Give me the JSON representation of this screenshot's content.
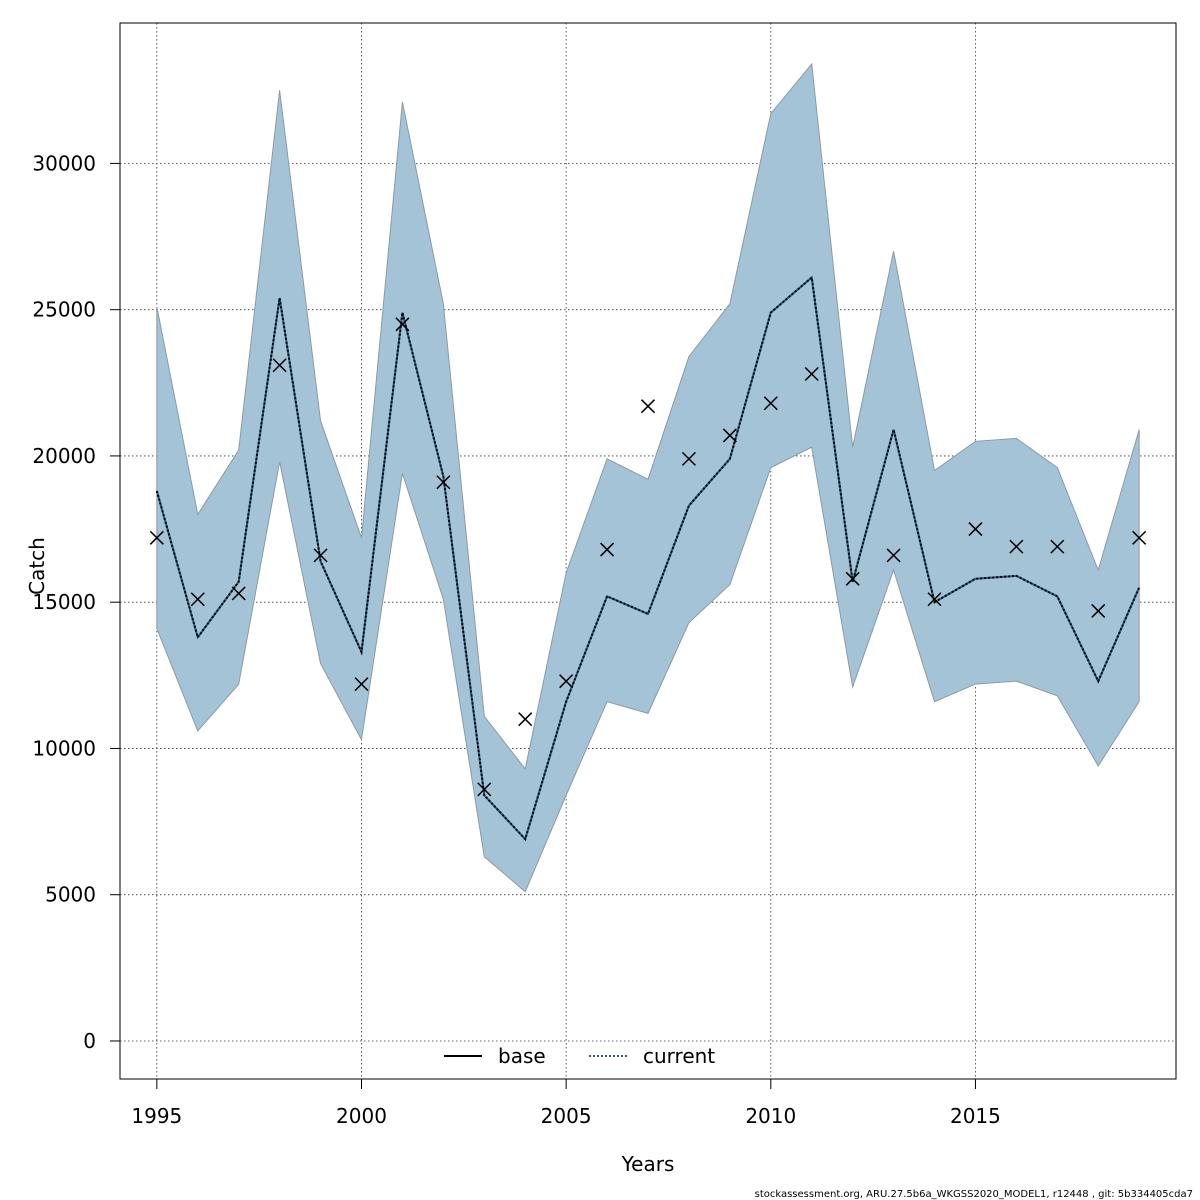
{
  "colors": {
    "band_fill": "#a4c3d6",
    "band_stroke": "#8a9ba6",
    "current_line": "#2a5a7a",
    "grid": "#333333",
    "marker": "#000000",
    "base_line": "#000000"
  },
  "footer": "stockassessment.org, ARU.27.5b6a_WKGSS2020_MODEL1, r12448 , git: 5b334405cda7",
  "chart_data": {
    "type": "line",
    "xlabel": "Years",
    "ylabel": "Catch",
    "xlim": [
      1994.1,
      2019.9
    ],
    "ylim": [
      -1300,
      34800
    ],
    "x_ticks": [
      1995,
      2000,
      2005,
      2010,
      2015
    ],
    "x_tick_labels": [
      "1995",
      "2000",
      "2005",
      "2010",
      "2015"
    ],
    "y_ticks": [
      0,
      5000,
      10000,
      15000,
      20000,
      25000,
      30000
    ],
    "y_tick_labels": [
      "0",
      "5000",
      "10000",
      "15000",
      "20000",
      "25000",
      "30000"
    ],
    "grid": true,
    "legend_position": "bottom",
    "legend": [
      {
        "label": "base",
        "style": "solid"
      },
      {
        "label": "current",
        "style": "dotted"
      }
    ],
    "x": [
      1995,
      1996,
      1997,
      1998,
      1999,
      2000,
      2001,
      2002,
      2003,
      2004,
      2005,
      2006,
      2007,
      2008,
      2009,
      2010,
      2011,
      2012,
      2013,
      2014,
      2015,
      2016,
      2017,
      2018,
      2019
    ],
    "series": [
      {
        "name": "current",
        "values": [
          18800,
          13800,
          15700,
          25400,
          16400,
          13300,
          24900,
          19300,
          8400,
          6900,
          11600,
          15200,
          14600,
          18300,
          19900,
          24900,
          26100,
          15700,
          20900,
          15000,
          15800,
          15900,
          15200,
          12300,
          15500
        ]
      },
      {
        "name": "upper",
        "values": [
          25100,
          18000,
          20200,
          32500,
          21200,
          17200,
          32100,
          25200,
          11100,
          9300,
          16000,
          19900,
          19200,
          23400,
          25200,
          31700,
          33400,
          20300,
          27000,
          19500,
          20500,
          20600,
          19600,
          16100,
          20900
        ]
      },
      {
        "name": "lower",
        "values": [
          14100,
          10600,
          12200,
          19800,
          12900,
          10300,
          19400,
          15100,
          6300,
          5100,
          8400,
          11600,
          11200,
          14300,
          15600,
          19600,
          20300,
          12100,
          16100,
          11600,
          12200,
          12300,
          11800,
          9400,
          11600
        ]
      },
      {
        "name": "observed",
        "values": [
          17200,
          15100,
          15300,
          23100,
          16600,
          12200,
          24500,
          19100,
          8600,
          11000,
          12300,
          16800,
          21700,
          19900,
          20700,
          21800,
          22800,
          15800,
          16600,
          15100,
          17500,
          16900,
          16900,
          14700,
          17200
        ]
      }
    ]
  }
}
